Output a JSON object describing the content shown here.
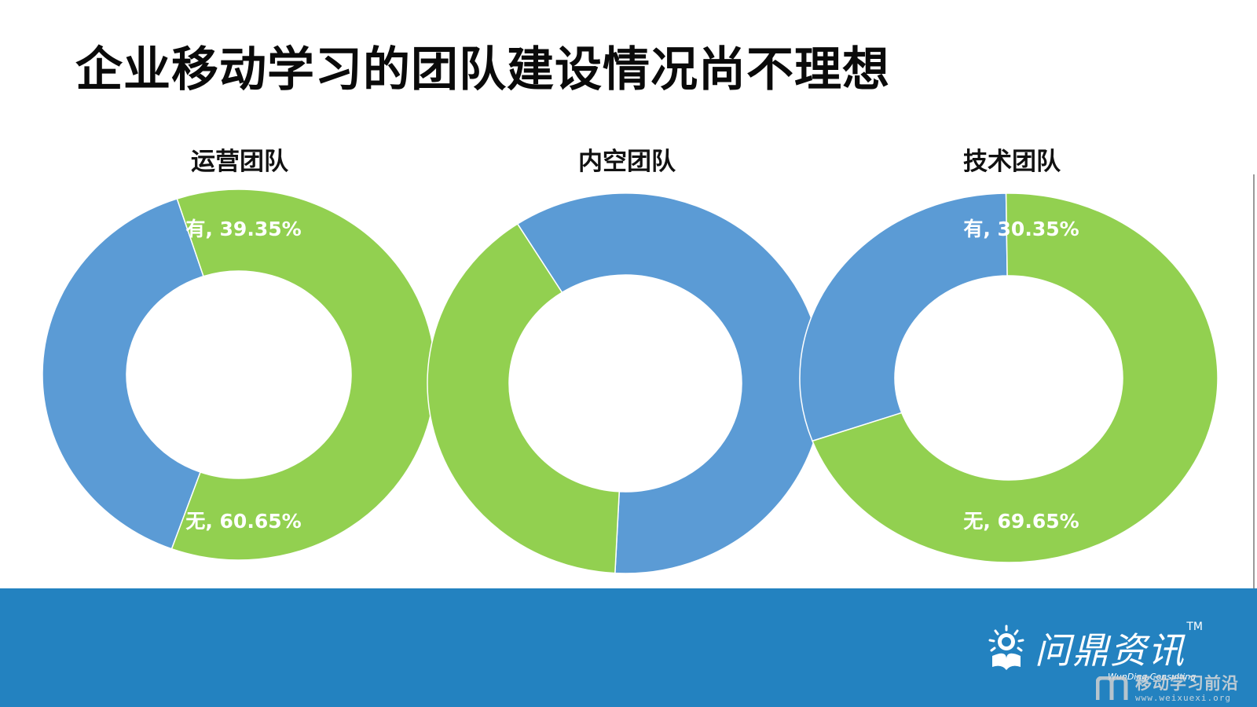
{
  "page": {
    "title": "企业移动学习的团队建设情况尚不理想"
  },
  "colors": {
    "you": "#5b9bd5",
    "wu": "#92d050",
    "footer": "#2382c0"
  },
  "chart_data": [
    {
      "type": "pie",
      "donut": true,
      "title": "运营团队",
      "slices": [
        {
          "name": "有",
          "value": 39.35,
          "label": "有, 39.35%",
          "color": "#5b9bd5"
        },
        {
          "name": "无",
          "value": 60.65,
          "label": "无, 60.65%",
          "color": "#92d050"
        }
      ]
    },
    {
      "type": "pie",
      "donut": true,
      "title": "内空团队",
      "slices": [
        {
          "name": "有",
          "value": 60.0,
          "label": "",
          "color": "#5b9bd5"
        },
        {
          "name": "无",
          "value": 40.0,
          "label": "",
          "color": "#92d050"
        }
      ]
    },
    {
      "type": "pie",
      "donut": true,
      "title": "技术团队",
      "slices": [
        {
          "name": "有",
          "value": 30.35,
          "label": "有, 30.35%",
          "color": "#5b9bd5"
        },
        {
          "name": "无",
          "value": 69.65,
          "label": "无, 69.65%",
          "color": "#92d050"
        }
      ]
    }
  ],
  "footer": {
    "logo_text": "问鼎资讯",
    "logo_tm": "TM",
    "logo_sub": "WunDing Consulting",
    "watermark_main": "移动学习前沿",
    "watermark_url": "www.weixuexi.org",
    "logo_icon": "sun-book-icon",
    "watermark_icon": "m-logo-icon"
  }
}
